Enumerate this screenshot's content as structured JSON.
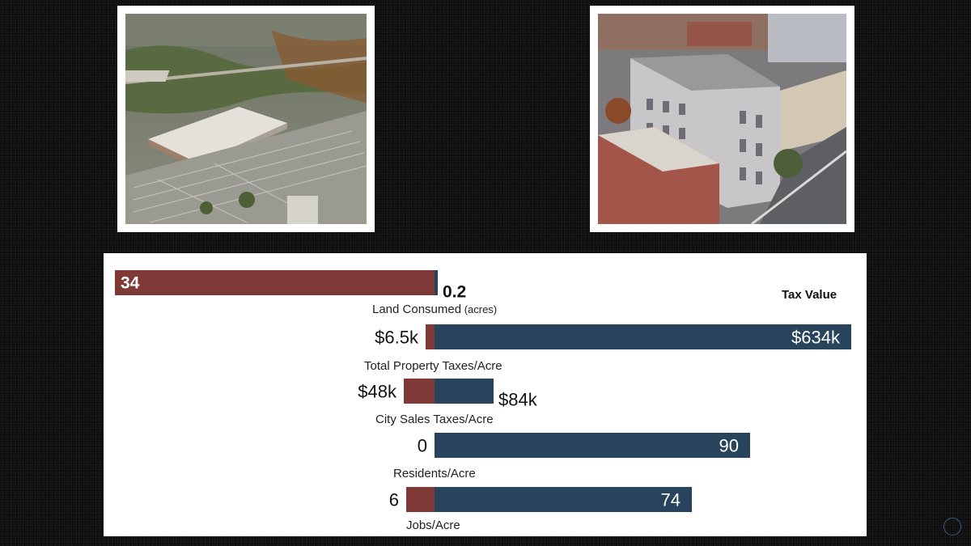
{
  "chart_data": {
    "type": "bar",
    "orientation": "horizontal",
    "layout": "diverging-paired",
    "legend": {
      "title": "Tax Value"
    },
    "colors": {
      "suburban": "#7f3a37",
      "downtown": "#27445c",
      "dark_text": "#111111",
      "label_text": "#222222",
      "on_bar_text": "#ffffff"
    },
    "metrics": [
      {
        "label": "Land Consumed (acres)",
        "label_main": "Land Consumed",
        "label_unit": " (acres)",
        "suburban": {
          "value": 34,
          "text": "34"
        },
        "downtown": {
          "value": 0.2,
          "text": "0.2"
        }
      },
      {
        "label": "Total Property Taxes/Acre",
        "suburban": {
          "value": 6500,
          "text": "$6.5k"
        },
        "downtown": {
          "value": 634000,
          "text": "$634k"
        }
      },
      {
        "label": "City Sales Taxes/Acre",
        "suburban": {
          "value": 48000,
          "text": "$48k"
        },
        "downtown": {
          "value": 84000,
          "text": "$84k"
        }
      },
      {
        "label": "Residents/Acre",
        "suburban": {
          "value": 0,
          "text": "0"
        },
        "downtown": {
          "value": 90,
          "text": "90"
        }
      },
      {
        "label": "Jobs/Acre",
        "suburban": {
          "value": 6,
          "text": "6"
        },
        "downtown": {
          "value": 74,
          "text": "74"
        }
      }
    ]
  }
}
